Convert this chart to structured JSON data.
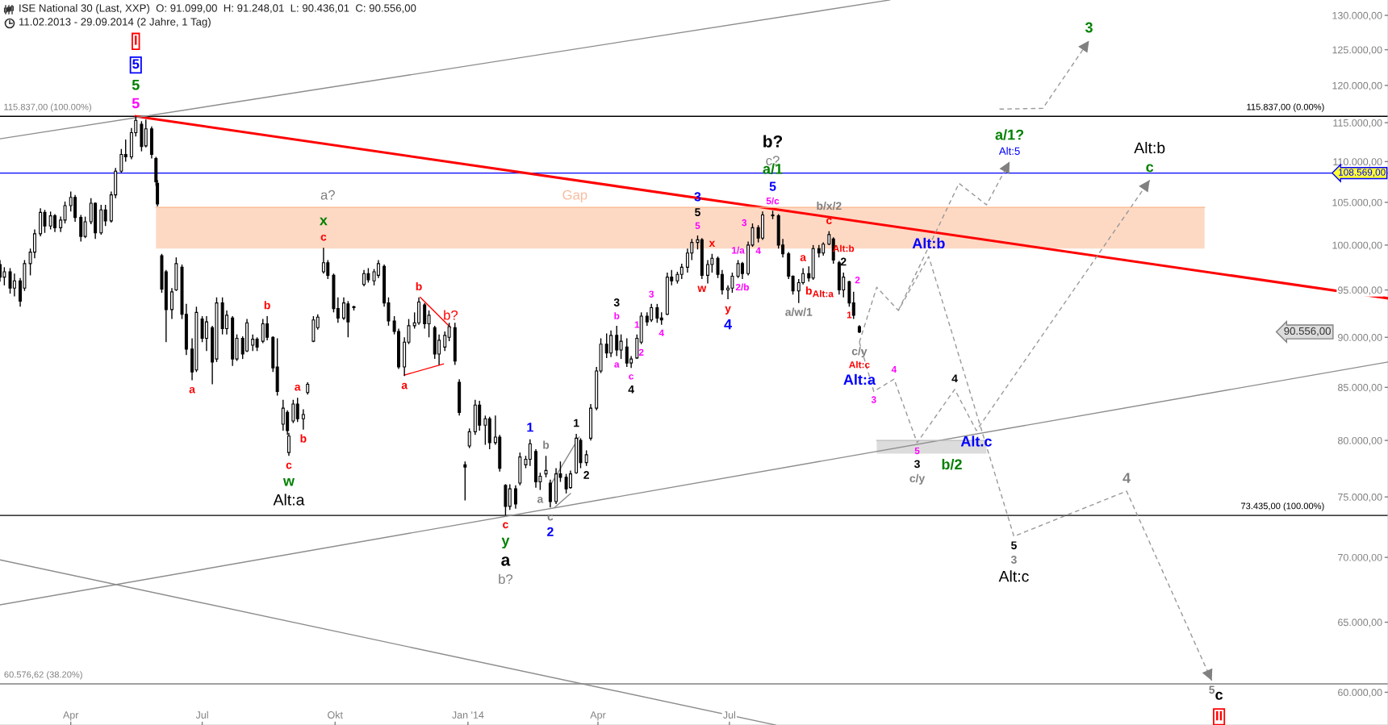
{
  "chart_data": {
    "type": "candlestick",
    "title": "ISE National 30 (Last, XXP)  O: 91.099,00  H: 91.248,01  L: 90.436,01  C: 90.556,00",
    "subtitle": "11.02.2013 - 29.09.2014 (2 Jahre, 1 Tag)",
    "log": "y",
    "xlim": [
      "2013-02-11",
      "2015-09-30"
    ],
    "xticks": [
      {
        "value": "2013-04-01",
        "label": "Apr"
      },
      {
        "value": "2013-07-01",
        "label": "Jul"
      },
      {
        "value": "2013-10-01",
        "label": "Okt"
      },
      {
        "value": "2014-01-01",
        "label": "Jan '14"
      },
      {
        "value": "2014-04-01",
        "label": "Apr"
      },
      {
        "value": "2014-07-01",
        "label": "Jul"
      }
    ],
    "ylim": [
      57800,
      132300
    ],
    "yticks": [
      {
        "value": 60000,
        "label": "60.000,00"
      },
      {
        "value": 65000,
        "label": "65.000,00"
      },
      {
        "value": 70000,
        "label": "70.000,00"
      },
      {
        "value": 75000,
        "label": "75.000,00"
      },
      {
        "value": 80000,
        "label": "80.000,00"
      },
      {
        "value": 85000,
        "label": "85.000,00"
      },
      {
        "value": 90000,
        "label": "90.000,00"
      },
      {
        "value": 95000,
        "label": "95.000,00"
      },
      {
        "value": 100000,
        "label": "100.000,00"
      },
      {
        "value": 105000,
        "label": "105.000,00"
      },
      {
        "value": 110000,
        "label": "110.000,00"
      },
      {
        "value": 115000,
        "label": "115.000,00"
      },
      {
        "value": 120000,
        "label": "120.000,00"
      },
      {
        "value": 125000,
        "label": "125.000,00"
      },
      {
        "value": 130000,
        "label": "130.000,00"
      }
    ],
    "color": "#000000",
    "x": [
      "2013-02-11",
      "2013-02-14",
      "2013-02-18",
      "2013-02-21",
      "2013-02-25",
      "2013-02-28",
      "2013-03-04",
      "2013-03-07",
      "2013-03-11",
      "2013-03-14",
      "2013-03-18",
      "2013-03-21",
      "2013-03-25",
      "2013-03-28",
      "2013-04-01",
      "2013-04-04",
      "2013-04-08",
      "2013-04-11",
      "2013-04-15",
      "2013-04-18",
      "2013-04-22",
      "2013-04-25",
      "2013-04-29",
      "2013-05-02",
      "2013-05-06",
      "2013-05-09",
      "2013-05-13",
      "2013-05-16",
      "2013-05-20",
      "2013-05-23",
      "2013-05-27",
      "2013-05-30",
      "2013-05-31",
      "2013-06-03",
      "2013-06-06",
      "2013-06-10",
      "2013-06-13",
      "2013-06-17",
      "2013-06-20",
      "2013-06-24",
      "2013-06-27",
      "2013-07-01",
      "2013-07-04",
      "2013-07-08",
      "2013-07-11",
      "2013-07-15",
      "2013-07-18",
      "2013-07-22",
      "2013-07-25",
      "2013-07-29",
      "2013-08-01",
      "2013-08-05",
      "2013-08-08",
      "2013-08-12",
      "2013-08-15",
      "2013-08-19",
      "2013-08-22",
      "2013-08-26",
      "2013-08-29",
      "2013-08-30",
      "2013-09-02",
      "2013-09-05",
      "2013-09-09",
      "2013-09-12",
      "2013-09-16",
      "2013-09-19",
      "2013-09-23",
      "2013-09-26",
      "2013-09-30",
      "2013-10-03",
      "2013-10-07",
      "2013-10-10",
      "2013-10-14",
      "2013-10-21",
      "2013-10-24",
      "2013-10-28",
      "2013-10-31",
      "2013-11-04",
      "2013-11-07",
      "2013-11-11",
      "2013-11-14",
      "2013-11-18",
      "2013-11-21",
      "2013-11-25",
      "2013-11-28",
      "2013-12-02",
      "2013-12-05",
      "2013-12-09",
      "2013-12-12",
      "2013-12-16",
      "2013-12-19",
      "2013-12-23",
      "2013-12-26",
      "2013-12-30",
      "2014-01-02",
      "2014-01-06",
      "2014-01-09",
      "2014-01-13",
      "2014-01-16",
      "2014-01-20",
      "2014-01-23",
      "2014-01-27",
      "2014-01-30",
      "2014-02-03",
      "2014-02-06",
      "2014-02-10",
      "2014-02-13",
      "2014-02-17",
      "2014-02-20",
      "2014-02-24",
      "2014-02-27",
      "2014-03-03",
      "2014-03-06",
      "2014-03-10",
      "2014-03-13",
      "2014-03-17",
      "2014-03-20",
      "2014-03-24",
      "2014-03-27",
      "2014-03-31",
      "2014-04-03",
      "2014-04-07",
      "2014-04-10",
      "2014-04-14",
      "2014-04-17",
      "2014-04-21",
      "2014-04-24",
      "2014-04-28",
      "2014-05-01",
      "2014-05-05",
      "2014-05-08",
      "2014-05-12",
      "2014-05-15",
      "2014-05-19",
      "2014-05-22",
      "2014-05-26",
      "2014-05-29",
      "2014-06-02",
      "2014-06-05",
      "2014-06-09",
      "2014-06-12",
      "2014-06-16",
      "2014-06-19",
      "2014-06-23",
      "2014-06-26",
      "2014-06-30",
      "2014-07-03",
      "2014-07-07",
      "2014-07-10",
      "2014-07-14",
      "2014-07-17",
      "2014-07-21",
      "2014-07-24",
      "2014-07-31",
      "2014-08-04",
      "2014-08-07",
      "2014-08-11",
      "2014-08-14",
      "2014-08-18",
      "2014-08-21",
      "2014-08-25",
      "2014-08-28",
      "2014-09-01",
      "2014-09-04",
      "2014-09-08",
      "2014-09-11",
      "2014-09-15",
      "2014-09-18",
      "2014-09-22",
      "2014-09-25",
      "2014-09-29"
    ],
    "ohlc": [
      [
        97800,
        98300,
        95900,
        96400
      ],
      [
        96400,
        97500,
        95500,
        97000
      ],
      [
        97000,
        97400,
        94600,
        95200
      ],
      [
        95200,
        96800,
        94300,
        96000
      ],
      [
        96000,
        96300,
        93200,
        93800
      ],
      [
        95200,
        98300,
        94900,
        97900
      ],
      [
        97900,
        99600,
        96600,
        99200
      ],
      [
        99200,
        101800,
        98500,
        101300
      ],
      [
        101300,
        104300,
        101000,
        103800
      ],
      [
        103800,
        104100,
        101400,
        102200
      ],
      [
        102200,
        103900,
        101800,
        103400
      ],
      [
        103400,
        103600,
        101500,
        102000
      ],
      [
        102000,
        103300,
        101500,
        102900
      ],
      [
        102900,
        105100,
        102500,
        104600
      ],
      [
        104600,
        106300,
        103900,
        105600
      ],
      [
        105600,
        105900,
        102700,
        103200
      ],
      [
        103200,
        103500,
        100400,
        101000
      ],
      [
        101000,
        103300,
        100800,
        102700
      ],
      [
        102700,
        105500,
        102400,
        104900
      ],
      [
        104900,
        105000,
        100700,
        101400
      ],
      [
        101400,
        104700,
        101200,
        104100
      ],
      [
        104100,
        104700,
        102200,
        102800
      ],
      [
        102800,
        106300,
        102600,
        105900
      ],
      [
        105900,
        109200,
        105500,
        108800
      ],
      [
        108800,
        111600,
        108600,
        110900
      ],
      [
        110900,
        112800,
        110000,
        110600
      ],
      [
        110600,
        114300,
        110300,
        113700
      ],
      [
        113700,
        115837,
        113200,
        115300
      ],
      [
        114800,
        115200,
        111300,
        111900
      ],
      [
        112000,
        115400,
        111800,
        114200
      ],
      [
        114200,
        114500,
        110400,
        110900
      ],
      [
        110400,
        110600,
        107000,
        107500
      ],
      [
        107300,
        107700,
        104500,
        104800
      ],
      [
        98800,
        99000,
        94700,
        95100
      ],
      [
        97000,
        97200,
        89500,
        92900
      ],
      [
        92900,
        95200,
        91900,
        94800
      ],
      [
        95000,
        98600,
        94900,
        97900
      ],
      [
        97500,
        97800,
        91900,
        92400
      ],
      [
        92400,
        93500,
        88200,
        88800
      ],
      [
        88800,
        89900,
        85700,
        86500
      ],
      [
        86700,
        93200,
        86500,
        92600
      ],
      [
        91900,
        92200,
        89500,
        89900
      ],
      [
        89900,
        92200,
        88600,
        91600
      ],
      [
        91000,
        91200,
        85300,
        87500
      ],
      [
        87800,
        94200,
        87500,
        93600
      ],
      [
        93600,
        94200,
        90300,
        90900
      ],
      [
        90900,
        92800,
        90300,
        92300
      ],
      [
        92000,
        92200,
        87100,
        87800
      ],
      [
        87800,
        90300,
        87600,
        89900
      ],
      [
        89900,
        90100,
        87800,
        88300
      ],
      [
        88600,
        91900,
        88500,
        91500
      ],
      [
        89200,
        90300,
        88600,
        89800
      ],
      [
        89800,
        90000,
        88600,
        89000
      ],
      [
        89600,
        91900,
        89400,
        91400
      ],
      [
        91400,
        92200,
        89700,
        90000
      ],
      [
        90000,
        90100,
        86500,
        86900
      ],
      [
        87000,
        89900,
        84200,
        84600
      ],
      [
        81500,
        83800,
        80900,
        83000
      ],
      [
        82600,
        82800,
        80500,
        80900
      ],
      [
        78900,
        80700,
        78600,
        80400
      ],
      [
        81800,
        83800,
        81600,
        83400
      ],
      [
        83400,
        84000,
        81700,
        82000
      ],
      [
        82000,
        82900,
        81000,
        82400
      ],
      [
        84500,
        85500,
        84300,
        85300
      ],
      [
        89600,
        92200,
        89500,
        91800
      ],
      [
        91000,
        92400,
        90800,
        92100
      ],
      [
        97000,
        99700,
        96800,
        98000
      ],
      [
        98000,
        98300,
        96200,
        96600
      ],
      [
        96600,
        96800,
        92600,
        93000
      ],
      [
        93000,
        94200,
        91500,
        92000
      ],
      [
        92000,
        94200,
        91800,
        93600
      ],
      [
        93500,
        93800,
        90000,
        91600
      ],
      [
        93100,
        93300,
        92800,
        93200
      ],
      [
        95600,
        97200,
        95400,
        96800
      ],
      [
        96800,
        97400,
        95800,
        96100
      ],
      [
        96000,
        97300,
        95500,
        97000
      ],
      [
        96600,
        98300,
        96300,
        97900
      ],
      [
        97600,
        97800,
        93200,
        93600
      ],
      [
        93600,
        94200,
        91200,
        91700
      ],
      [
        91700,
        92200,
        90300,
        90600
      ],
      [
        90600,
        90900,
        86800,
        87000
      ],
      [
        87000,
        90000,
        86100,
        89500
      ],
      [
        89500,
        91900,
        89300,
        91200
      ],
      [
        91200,
        92600,
        90900,
        91500
      ],
      [
        91500,
        94200,
        91300,
        93700
      ],
      [
        93400,
        93600,
        90900,
        91400
      ],
      [
        91400,
        92800,
        90000,
        92300
      ],
      [
        91000,
        91200,
        87800,
        88300
      ],
      [
        88300,
        90300,
        87200,
        89700
      ],
      [
        89000,
        90600,
        88600,
        90200
      ],
      [
        90000,
        91500,
        89600,
        91100
      ],
      [
        91000,
        91500,
        87200,
        87600
      ],
      [
        85500,
        85800,
        82300,
        82600
      ],
      [
        77800,
        78100,
        74700,
        77600
      ],
      [
        79500,
        81100,
        79300,
        80800
      ],
      [
        80800,
        83800,
        80500,
        83300
      ],
      [
        83300,
        83700,
        80900,
        81400
      ],
      [
        81400,
        82300,
        79600,
        82000
      ],
      [
        82000,
        82200,
        79200,
        79800
      ],
      [
        79800,
        82300,
        79600,
        80300
      ],
      [
        80300,
        80500,
        77200,
        77500
      ],
      [
        76000,
        76100,
        73435,
        74200
      ],
      [
        74200,
        76100,
        73900,
        75700
      ],
      [
        75700,
        76000,
        74000,
        74400
      ],
      [
        76200,
        78900,
        76000,
        78500
      ],
      [
        77800,
        78600,
        77500,
        78300
      ],
      [
        78300,
        80100,
        77700,
        79700
      ],
      [
        79000,
        79200,
        75800,
        76300
      ],
      [
        76300,
        77100,
        75600,
        76800
      ],
      [
        77000,
        78600,
        76700,
        77300
      ],
      [
        76200,
        76500,
        74100,
        74600
      ],
      [
        74600,
        77500,
        74400,
        77000
      ],
      [
        77000,
        78100,
        76300,
        76700
      ],
      [
        76700,
        77000,
        75300,
        75700
      ],
      [
        75800,
        77300,
        75700,
        77000
      ],
      [
        77100,
        80600,
        77000,
        80200
      ],
      [
        80000,
        80200,
        77500,
        78000
      ],
      [
        78000,
        79100,
        77700,
        78700
      ],
      [
        80200,
        83400,
        80000,
        83000
      ],
      [
        83000,
        87000,
        82800,
        86600
      ],
      [
        86600,
        89900,
        86400,
        89300
      ],
      [
        89300,
        90400,
        87900,
        88400
      ],
      [
        88400,
        90700,
        88000,
        90200
      ],
      [
        90200,
        91200,
        88100,
        88700
      ],
      [
        88700,
        90300,
        87800,
        89600
      ],
      [
        89000,
        89900,
        87000,
        87400
      ],
      [
        87400,
        88100,
        86900,
        87800
      ],
      [
        87900,
        90300,
        87800,
        89900
      ],
      [
        89500,
        92600,
        89300,
        92200
      ],
      [
        92200,
        92600,
        91200,
        91600
      ],
      [
        91800,
        93500,
        91600,
        93100
      ],
      [
        93100,
        93500,
        91500,
        92000
      ],
      [
        92000,
        92600,
        91300,
        91800
      ],
      [
        92400,
        96900,
        92300,
        96400
      ],
      [
        96400,
        97200,
        95500,
        96000
      ],
      [
        96000,
        97000,
        95700,
        96700
      ],
      [
        96700,
        97900,
        96200,
        97500
      ],
      [
        97500,
        99600,
        96900,
        99100
      ],
      [
        99100,
        100700,
        98300,
        100300
      ],
      [
        100300,
        101100,
        99500,
        100600
      ],
      [
        100600,
        100800,
        96200,
        96600
      ],
      [
        96600,
        98300,
        95700,
        97800
      ],
      [
        97800,
        99000,
        96900,
        98500
      ],
      [
        98500,
        98700,
        96300,
        96700
      ],
      [
        96700,
        97200,
        94500,
        95000
      ],
      [
        95000,
        95500,
        94000,
        95200
      ],
      [
        95200,
        96900,
        94700,
        96500
      ],
      [
        96500,
        98300,
        96300,
        97900
      ],
      [
        97900,
        98100,
        96200,
        96800
      ],
      [
        96800,
        100400,
        96600,
        100000
      ],
      [
        100000,
        102500,
        99800,
        102000
      ],
      [
        102000,
        102300,
        100300,
        100800
      ],
      [
        100800,
        103900,
        100600,
        103500
      ],
      [
        103500,
        104000,
        103000,
        103400
      ],
      [
        103400,
        103600,
        99600,
        100000
      ],
      [
        100000,
        100700,
        98600,
        99000
      ],
      [
        99000,
        99200,
        96200,
        96500
      ],
      [
        96500,
        96600,
        94500,
        94900
      ],
      [
        94900,
        96200,
        93600,
        95800
      ],
      [
        95800,
        97400,
        95600,
        96800
      ],
      [
        96800,
        97600,
        95900,
        96300
      ],
      [
        96300,
        100000,
        96100,
        99600
      ],
      [
        99600,
        100000,
        98600,
        99100
      ],
      [
        99100,
        100300,
        98800,
        100100
      ],
      [
        100100,
        101600,
        100000,
        101200
      ],
      [
        100700,
        100900,
        97900,
        98300
      ],
      [
        98000,
        98200,
        94500,
        95000
      ],
      [
        95000,
        96900,
        94200,
        96400
      ],
      [
        95900,
        96000,
        93200,
        93600
      ],
      [
        93600,
        94800,
        91900,
        92300
      ],
      [
        91099,
        91248.01,
        90436.01,
        90556
      ]
    ],
    "ref_lines": [
      {
        "axis": "y",
        "value": 115837,
        "color": "#000000"
      },
      {
        "axis": "y",
        "value": 108569,
        "color": "#0000ff",
        "label": "108.569,00"
      },
      {
        "axis": "y",
        "value": 73435,
        "color": "#000000"
      },
      {
        "axis": "y",
        "value": 60576.62,
        "color": "#808080"
      }
    ],
    "series": [
      {
        "type": "line",
        "x": [
          "2013-05-16",
          "2015-09-30"
        ],
        "values": [
          115837,
          94100
        ],
        "color": "#ff0000",
        "line_style": "solid"
      },
      {
        "type": "line",
        "x": [
          "2013-02-11",
          "2014-10-20"
        ],
        "values": [
          112900,
          132300
        ],
        "color": "#8c8c8c",
        "line_style": "solid"
      },
      {
        "type": "line",
        "x": [
          "2013-02-11",
          "2015-09-30"
        ],
        "values": [
          66300,
          87500
        ],
        "color": "#8c8c8c",
        "line_style": "solid"
      },
      {
        "type": "line",
        "x": [
          "2013-02-11",
          "2014-08-02"
        ],
        "values": [
          69800,
          57800
        ],
        "color": "#8c8c8c",
        "line_style": "solid"
      },
      {
        "type": "line",
        "x": [
          "2013-11-29",
          "2013-12-20"
        ],
        "values": [
          94200,
          91000
        ],
        "color": "#ff0000",
        "line_style": "solid"
      },
      {
        "type": "line",
        "x": [
          "2013-11-18",
          "2013-12-15"
        ],
        "values": [
          86200,
          87300
        ],
        "color": "#ff0000",
        "line_style": "solid"
      },
      {
        "type": "line",
        "x": [
          "2014-02-28",
          "2014-03-19"
        ],
        "values": [
          76200,
          80300
        ],
        "color": "#8c8c8c",
        "line_style": "solid"
      },
      {
        "type": "line",
        "x": [
          "2014-03-02",
          "2014-03-13"
        ],
        "values": [
          74100,
          75300
        ],
        "color": "#8c8c8c",
        "line_style": "solid"
      },
      {
        "type": "line",
        "x": [
          "2014-09-29",
          "2014-10-11",
          "2014-10-26",
          "2014-11-16",
          "2015-01-14",
          "2015-04-02",
          "2015-05-31"
        ],
        "values": [
          89500,
          95300,
          92800,
          98700,
          71700,
          75500,
          60800
        ],
        "color": "#999999",
        "line_style": "dashed"
      },
      {
        "type": "line",
        "x": [
          "2014-09-29",
          "2014-10-09",
          "2014-10-23",
          "2014-11-08",
          "2014-12-04",
          "2014-12-19",
          "2015-04-18"
        ],
        "values": [
          89500,
          84600,
          85800,
          79800,
          84800,
          80900,
          107700
        ],
        "color": "#999999",
        "line_style": "dashed"
      },
      {
        "type": "line",
        "x": [
          "2014-10-26",
          "2014-12-07",
          "2014-12-26",
          "2015-01-11"
        ],
        "values": [
          92800,
          107300,
          104700,
          110000
        ],
        "color": "#999999",
        "line_style": "dashed"
      },
      {
        "type": "line",
        "x": [
          "2015-01-04",
          "2015-02-03",
          "2015-03-07"
        ],
        "values": [
          116800,
          116900,
          126300
        ],
        "color": "#999999",
        "line_style": "dashed"
      },
      {
        "type": "line",
        "x": [
          "2013-05-30",
          "2015-05-26"
        ],
        "values": [
          104400,
          104400
        ],
        "lower": [
          99600,
          99600
        ],
        "upper": [
          104400,
          104400
        ],
        "color": "#fbb389",
        "line_style": "solid"
      },
      {
        "type": "line",
        "x": [
          "2014-10-11",
          "2014-12-26"
        ],
        "values": [
          80000,
          80000
        ],
        "lower": [
          78800,
          78800
        ],
        "upper": [
          80000,
          80000
        ],
        "color": "#b9b9b9",
        "line_style": "solid"
      }
    ],
    "annotations": [
      {
        "text": "5",
        "x": "2013-05-16",
        "y": 115837
      },
      {
        "text": "5",
        "x": "2013-05-16",
        "y": 115837
      },
      "5",
      "I",
      {
        "text": "115.837,00 (100.00%)",
        "x": "2013-03-16",
        "y": 115837
      },
      {
        "text": "60.576,62 (38.20%)",
        "x": "2013-03-13",
        "y": 60576.62
      },
      {
        "text": "115.837,00 (0.00%)",
        "x": "2015-07-21",
        "y": 115837
      },
      {
        "text": "73.435,00 (100.00%)",
        "x": "2015-07-19",
        "y": 73435
      },
      {
        "text": "a",
        "x": "2013-06-24",
        "y": 85700
      },
      {
        "text": "b",
        "x": "2013-08-15",
        "y": 92200
      },
      {
        "text": "c",
        "x": "2013-08-30",
        "y": 78600
      },
      {
        "text": "w",
        "x": "2013-08-30",
        "y": 78600
      },
      {
        "text": "Alt:a",
        "x": "2013-08-30",
        "y": 78600
      },
      {
        "text": "a",
        "x": "2013-09-05",
        "y": 84000
      },
      {
        "text": "b",
        "x": "2013-09-09",
        "y": 81000
      },
      {
        "text": "c",
        "x": "2013-09-23",
        "y": 99700
      },
      {
        "text": "x",
        "x": "2013-09-23",
        "y": 99700
      },
      {
        "text": "a?",
        "x": "2013-09-26",
        "y": 104400
      },
      {
        "text": "a",
        "x": "2013-11-18",
        "y": 86100
      },
      {
        "text": "b",
        "x": "2013-11-28",
        "y": 94200
      },
      {
        "text": "b?",
        "x": "2013-12-20",
        "y": 91000
      },
      {
        "text": "c",
        "x": "2014-01-27",
        "y": 73435
      },
      {
        "text": "y",
        "x": "2014-01-27",
        "y": 73435
      },
      {
        "text": "a",
        "x": "2014-01-27",
        "y": 73435
      },
      "b?",
      {
        "text": "1",
        "x": "2014-02-13",
        "y": 80100
      },
      {
        "text": "b",
        "x": "2014-02-24",
        "y": 78600
      },
      {
        "text": "a",
        "x": "2014-02-20",
        "y": 75600
      },
      {
        "text": "c",
        "x": "2014-02-27",
        "y": 74100
      },
      {
        "text": "2",
        "x": "2014-02-27",
        "y": 74100
      },
      {
        "text": "1",
        "x": "2014-03-17",
        "y": 80600
      },
      {
        "text": "2",
        "x": "2014-03-24",
        "y": 77700
      },
      {
        "text": "b",
        "x": "2014-04-14",
        "y": 91200
      },
      {
        "text": "3",
        "x": "2014-04-14",
        "y": 91200
      },
      {
        "text": "a",
        "x": "2014-04-14",
        "y": 88100
      },
      {
        "text": "c",
        "x": "2014-04-24",
        "y": 86900
      },
      {
        "text": "4",
        "x": "2014-04-24",
        "y": 86900
      },
      {
        "text": "1",
        "x": "2014-04-28",
        "y": 90300
      },
      {
        "text": "2",
        "x": "2014-05-01",
        "y": 89300
      },
      {
        "text": "3",
        "x": "2014-05-08",
        "y": 93500
      },
      {
        "text": "4",
        "x": "2014-05-15",
        "y": 91300
      },
      {
        "text": "5",
        "x": "2014-06-09",
        "y": 101100
      },
      {
        "text": "5",
        "x": "2014-06-09",
        "y": 101100
      },
      {
        "text": "3",
        "x": "2014-06-09",
        "y": 101100
      },
      {
        "text": "w",
        "x": "2014-06-12",
        "y": 96200
      },
      {
        "text": "x",
        "x": "2014-06-19",
        "y": 99000
      },
      {
        "text": "y",
        "x": "2014-06-30",
        "y": 94000
      },
      {
        "text": "4",
        "x": "2014-06-30",
        "y": 94000
      },
      {
        "text": "1/a",
        "x": "2014-07-07",
        "y": 98300
      },
      {
        "text": "2/b",
        "x": "2014-07-10",
        "y": 96200
      },
      {
        "text": "3",
        "x": "2014-07-17",
        "y": 102500
      },
      {
        "text": "4",
        "x": "2014-07-21",
        "y": 100300
      },
      {
        "text": "5/c",
        "x": "2014-07-31",
        "y": 104000
      },
      {
        "text": "5",
        "x": "2014-07-31",
        "y": 104000
      },
      {
        "text": "a/1",
        "x": "2014-07-31",
        "y": 104000
      },
      {
        "text": "c?",
        "x": "2014-07-31",
        "y": 108569
      },
      {
        "text": "b?",
        "x": "2014-07-31",
        "y": 108569
      },
      {
        "text": "a/w/1",
        "x": "2014-08-18",
        "y": 93600
      },
      {
        "text": "a",
        "x": "2014-08-21",
        "y": 97400
      },
      {
        "text": "b",
        "x": "2014-08-25",
        "y": 95900
      },
      {
        "text": "c",
        "x": "2014-09-08",
        "y": 101600
      },
      {
        "text": "b/x/2",
        "x": "2014-09-08",
        "y": 101600
      },
      {
        "text": "2",
        "x": "2014-09-18",
        "y": 96900
      },
      {
        "text": "Alt:b",
        "x": "2014-09-18",
        "y": 96900
      },
      {
        "text": "2",
        "x": "2014-09-22",
        "y": 96000
      },
      {
        "text": "Alt:a",
        "x": "2014-09-15",
        "y": 94500
      },
      {
        "text": "1",
        "x": "2014-09-22",
        "y": 93200
      },
      {
        "text": "c/y",
        "x": "2014-09-29",
        "y": 89500
      },
      {
        "text": "Alt:c",
        "x": "2014-09-29",
        "y": 89500
      },
      {
        "text": "Alt:a",
        "x": "2014-09-29",
        "y": 89500
      },
      {
        "text": "3",
        "x": "2014-10-09",
        "y": 84600
      },
      {
        "text": "4",
        "x": "2014-10-23",
        "y": 85800
      },
      {
        "text": "5",
        "x": "2014-11-08",
        "y": 79800
      },
      {
        "text": "3",
        "x": "2014-11-08",
        "y": 79800
      },
      {
        "text": "c/y",
        "x": "2014-11-08",
        "y": 79800
      },
      {
        "text": "4",
        "x": "2014-12-04",
        "y": 84800
      },
      {
        "text": "Alt.c",
        "x": "2014-12-19",
        "y": 80900
      },
      {
        "text": "b/2",
        "x": "2014-12-02",
        "y": 78800
      },
      {
        "text": "Alt:b",
        "x": "2014-11-16",
        "y": 98700
      },
      {
        "text": "Gap",
        "x": "2014-03-16",
        "y": 104400
      },
      {
        "text": "Alt:5",
        "x": "2015-01-11",
        "y": 110000
      },
      {
        "text": "a/1?",
        "x": "2015-01-11",
        "y": 110000
      },
      {
        "text": "3",
        "x": "2015-03-07",
        "y": 126300
      },
      {
        "text": "c",
        "x": "2015-04-18",
        "y": 107700
      },
      {
        "text": "Alt:b",
        "x": "2015-04-18",
        "y": 107700
      },
      {
        "text": "5",
        "x": "2015-01-14",
        "y": 71700
      },
      {
        "text": "3",
        "x": "2015-01-14",
        "y": 71700
      },
      {
        "text": "Alt:c",
        "x": "2015-01-14",
        "y": 71700
      },
      {
        "text": "4",
        "x": "2015-04-02",
        "y": 75500
      },
      {
        "text": "5",
        "x": "2015-05-31",
        "y": 60800
      },
      {
        "text": "c",
        "x": "2015-06-05",
        "y": 60576.62
      },
      {
        "text": "II",
        "x": "2015-06-05",
        "y": 60576.62
      },
      "90.556,00"
    ]
  }
}
